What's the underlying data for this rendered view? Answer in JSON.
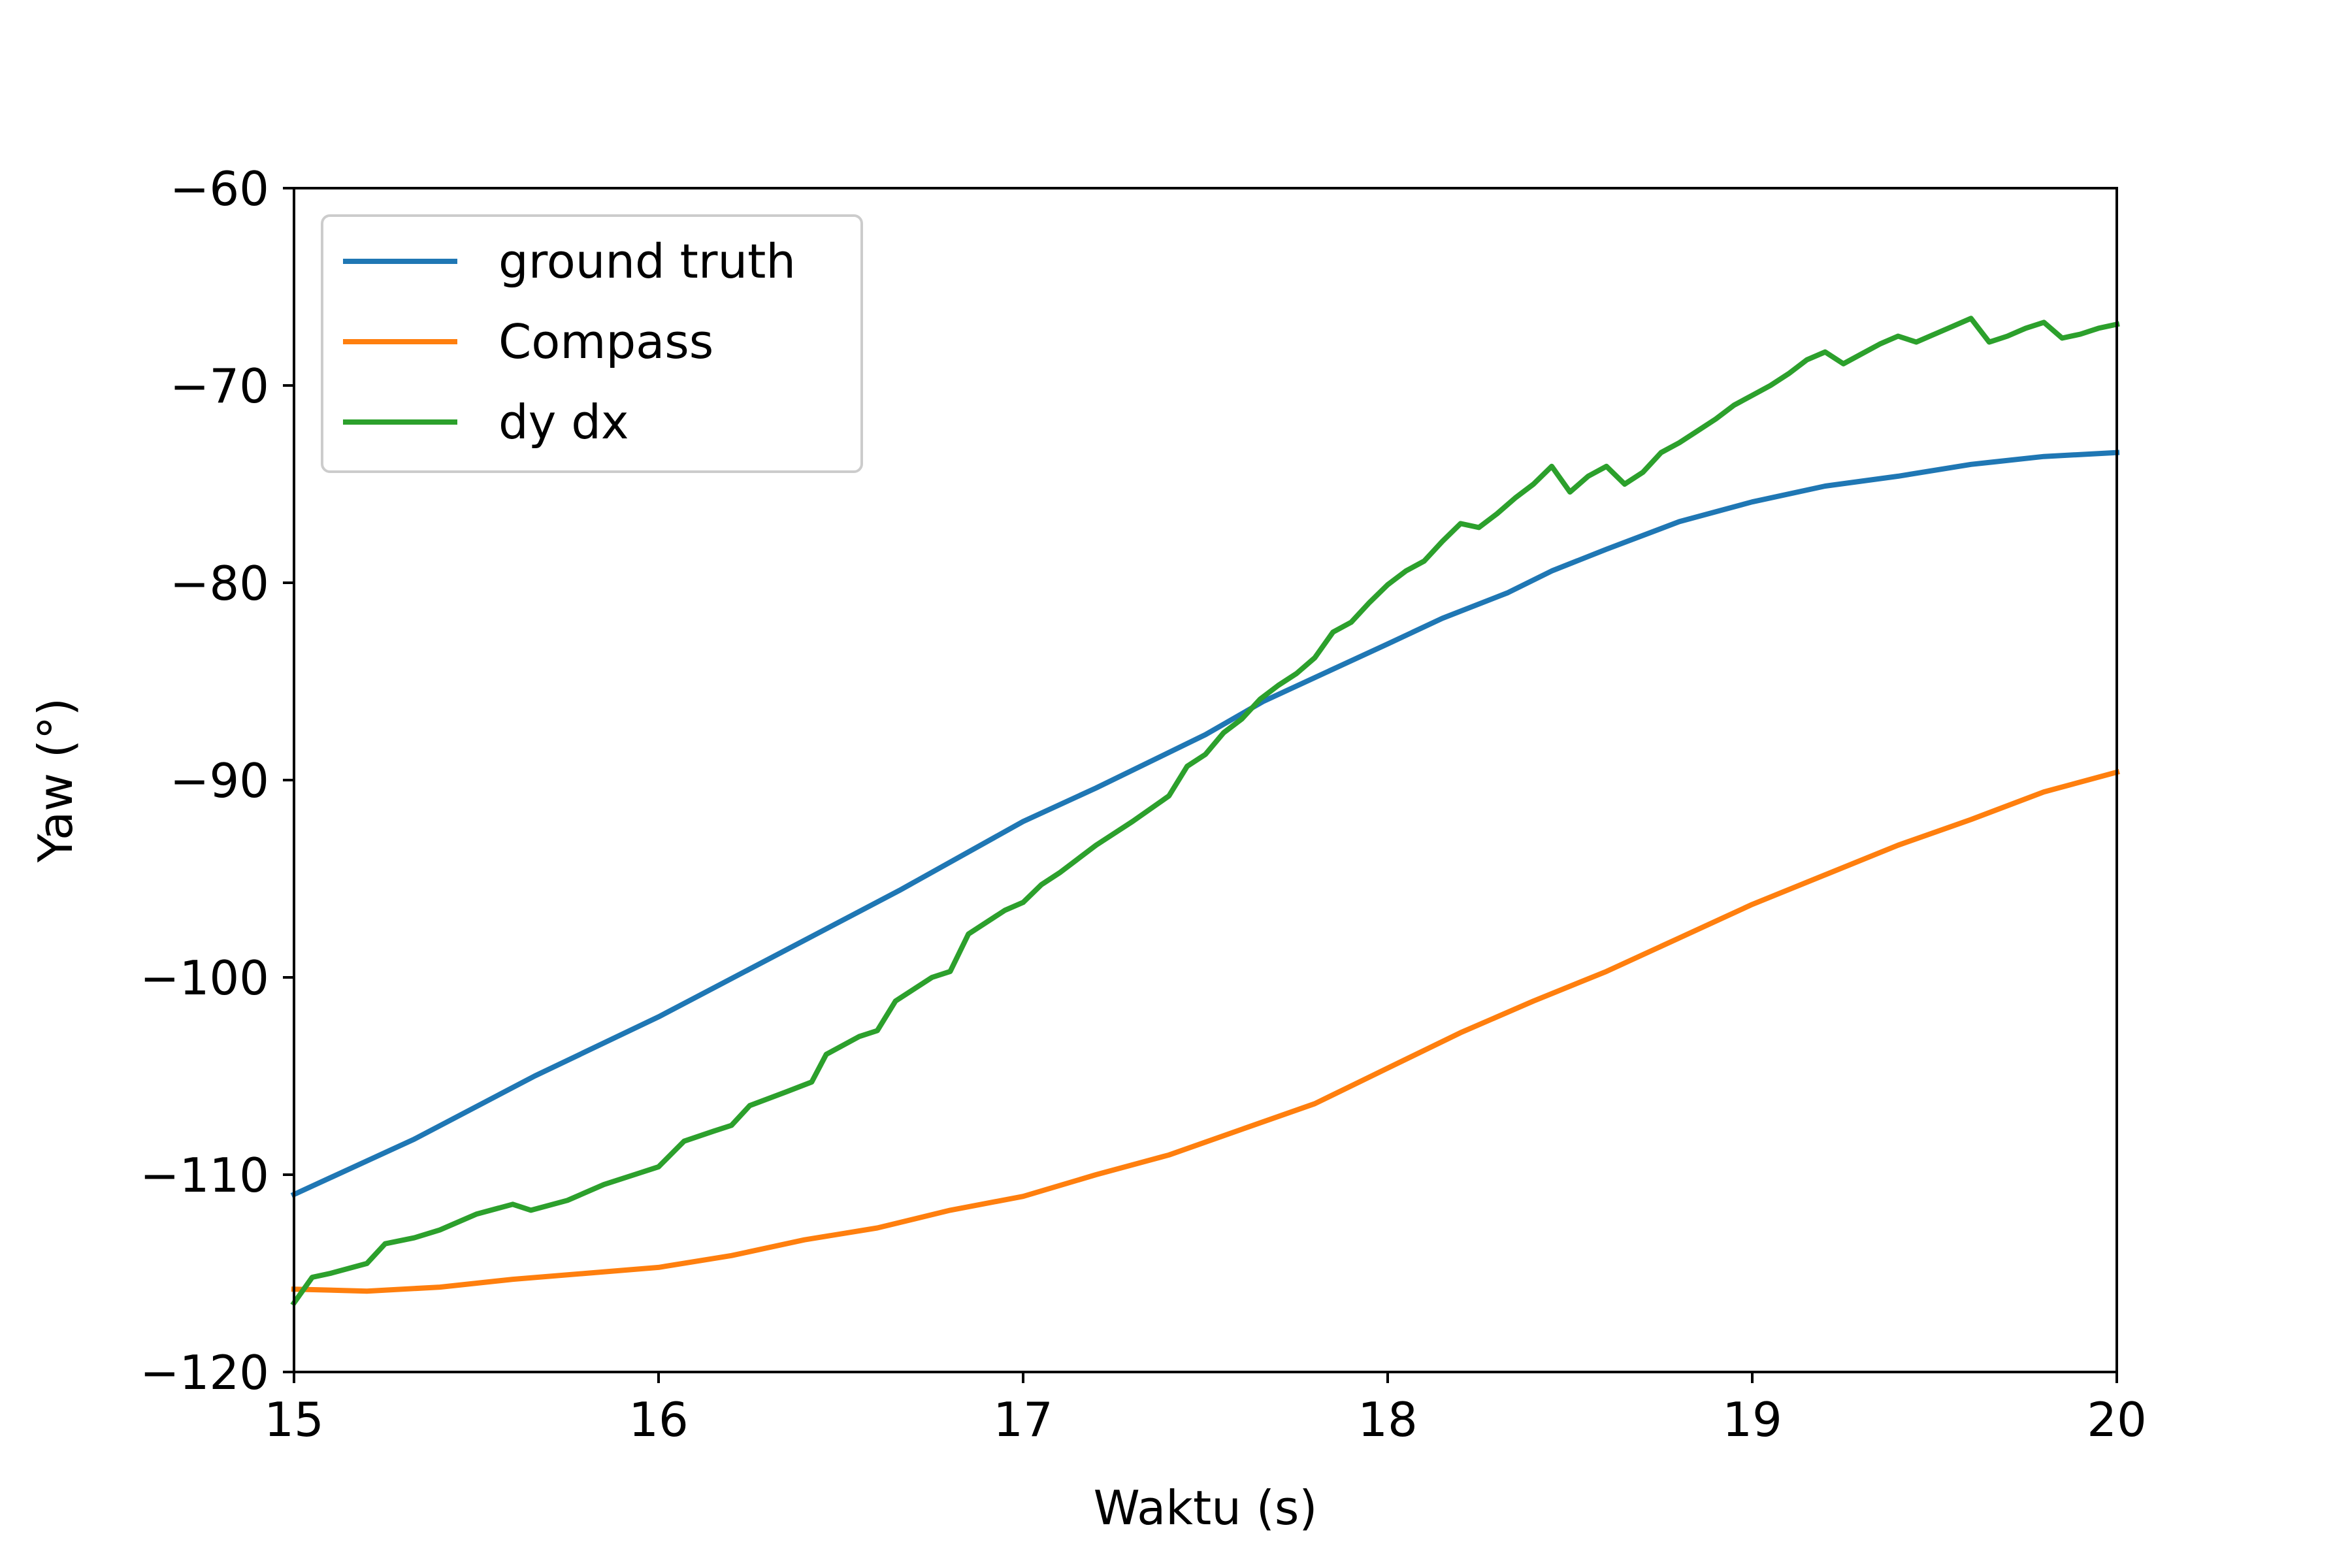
{
  "chart_data": {
    "type": "line",
    "title": "",
    "xlabel": "Waktu (s)",
    "ylabel": "Yaw (°)",
    "xlim": [
      15,
      20
    ],
    "ylim": [
      -120,
      -60
    ],
    "x_ticks": [
      15,
      16,
      17,
      18,
      19,
      20
    ],
    "y_ticks": [
      -120,
      -110,
      -100,
      -90,
      -80,
      -70,
      -60
    ],
    "x_tick_labels": [
      "15",
      "16",
      "17",
      "18",
      "19",
      "20"
    ],
    "y_tick_labels": [
      "−120",
      "−110",
      "−100",
      "−90",
      "−80",
      "−70",
      "−60"
    ],
    "grid": false,
    "legend_position": "top-left",
    "series": [
      {
        "name": "ground truth",
        "color": "#1f77b4",
        "x": [
          15.0,
          15.33,
          15.66,
          16.0,
          16.33,
          16.66,
          17.0,
          17.2,
          17.5,
          17.66,
          18.0,
          18.15,
          18.33,
          18.45,
          18.6,
          18.8,
          19.0,
          19.2,
          19.4,
          19.6,
          19.8,
          20.0
        ],
        "y": [
          -111.0,
          -108.2,
          -105.0,
          -102.0,
          -98.8,
          -95.6,
          -92.1,
          -90.4,
          -87.7,
          -86.0,
          -83.1,
          -81.8,
          -80.5,
          -79.4,
          -78.3,
          -76.9,
          -75.9,
          -75.1,
          -74.6,
          -74.0,
          -73.6,
          -73.4
        ]
      },
      {
        "name": "Compass",
        "color": "#ff7f0e",
        "x": [
          15.0,
          15.2,
          15.4,
          15.6,
          15.8,
          16.0,
          16.2,
          16.4,
          16.6,
          16.8,
          17.0,
          17.2,
          17.4,
          17.6,
          17.8,
          18.0,
          18.2,
          18.4,
          18.6,
          18.8,
          19.0,
          19.2,
          19.4,
          19.6,
          19.8,
          20.0
        ],
        "y": [
          -115.8,
          -115.9,
          -115.7,
          -115.3,
          -115.0,
          -114.7,
          -114.1,
          -113.3,
          -112.7,
          -111.8,
          -111.1,
          -110.0,
          -109.0,
          -107.7,
          -106.4,
          -104.6,
          -102.8,
          -101.2,
          -99.7,
          -98.0,
          -96.3,
          -94.8,
          -93.3,
          -92.0,
          -90.6,
          -89.6
        ]
      },
      {
        "name": "dy dx",
        "color": "#2ca02c",
        "x": [
          15.0,
          15.05,
          15.1,
          15.2,
          15.25,
          15.33,
          15.4,
          15.5,
          15.6,
          15.65,
          15.75,
          15.85,
          15.95,
          16.0,
          16.07,
          16.15,
          16.2,
          16.25,
          16.35,
          16.42,
          16.46,
          16.55,
          16.6,
          16.65,
          16.75,
          16.8,
          16.85,
          16.95,
          17.0,
          17.05,
          17.1,
          17.15,
          17.2,
          17.3,
          17.4,
          17.45,
          17.5,
          17.55,
          17.6,
          17.65,
          17.7,
          17.75,
          17.8,
          17.85,
          17.9,
          17.95,
          18.0,
          18.05,
          18.1,
          18.15,
          18.2,
          18.25,
          18.3,
          18.35,
          18.4,
          18.45,
          18.5,
          18.55,
          18.6,
          18.65,
          18.7,
          18.75,
          18.8,
          18.85,
          18.9,
          18.95,
          19.0,
          19.05,
          19.1,
          19.15,
          19.2,
          19.25,
          19.3,
          19.35,
          19.4,
          19.45,
          19.5,
          19.55,
          19.6,
          19.65,
          19.7,
          19.75,
          19.8,
          19.85,
          19.9,
          19.95,
          20.0
        ],
        "y": [
          -116.5,
          -115.2,
          -115.0,
          -114.5,
          -113.5,
          -113.2,
          -112.8,
          -112.0,
          -111.5,
          -111.8,
          -111.3,
          -110.5,
          -109.9,
          -109.6,
          -108.3,
          -107.8,
          -107.5,
          -106.5,
          -105.8,
          -105.3,
          -103.9,
          -103.0,
          -102.7,
          -101.2,
          -100.0,
          -99.7,
          -97.8,
          -96.6,
          -96.2,
          -95.3,
          -94.7,
          -94.0,
          -93.3,
          -92.1,
          -90.8,
          -89.3,
          -88.7,
          -87.6,
          -86.9,
          -85.9,
          -85.2,
          -84.6,
          -83.8,
          -82.5,
          -82.0,
          -81.0,
          -80.1,
          -79.4,
          -78.9,
          -77.9,
          -77.0,
          -77.2,
          -76.5,
          -75.7,
          -75.0,
          -74.1,
          -75.4,
          -74.6,
          -74.1,
          -75.0,
          -74.4,
          -73.4,
          -72.9,
          -72.3,
          -71.7,
          -71.0,
          -70.5,
          -70.0,
          -69.4,
          -68.7,
          -68.3,
          -68.9,
          -68.4,
          -67.9,
          -67.5,
          -67.8,
          -67.4,
          -67.0,
          -66.6,
          -67.8,
          -67.5,
          -67.1,
          -66.8,
          -67.6,
          -67.4,
          -67.1,
          -66.9
        ]
      }
    ]
  }
}
